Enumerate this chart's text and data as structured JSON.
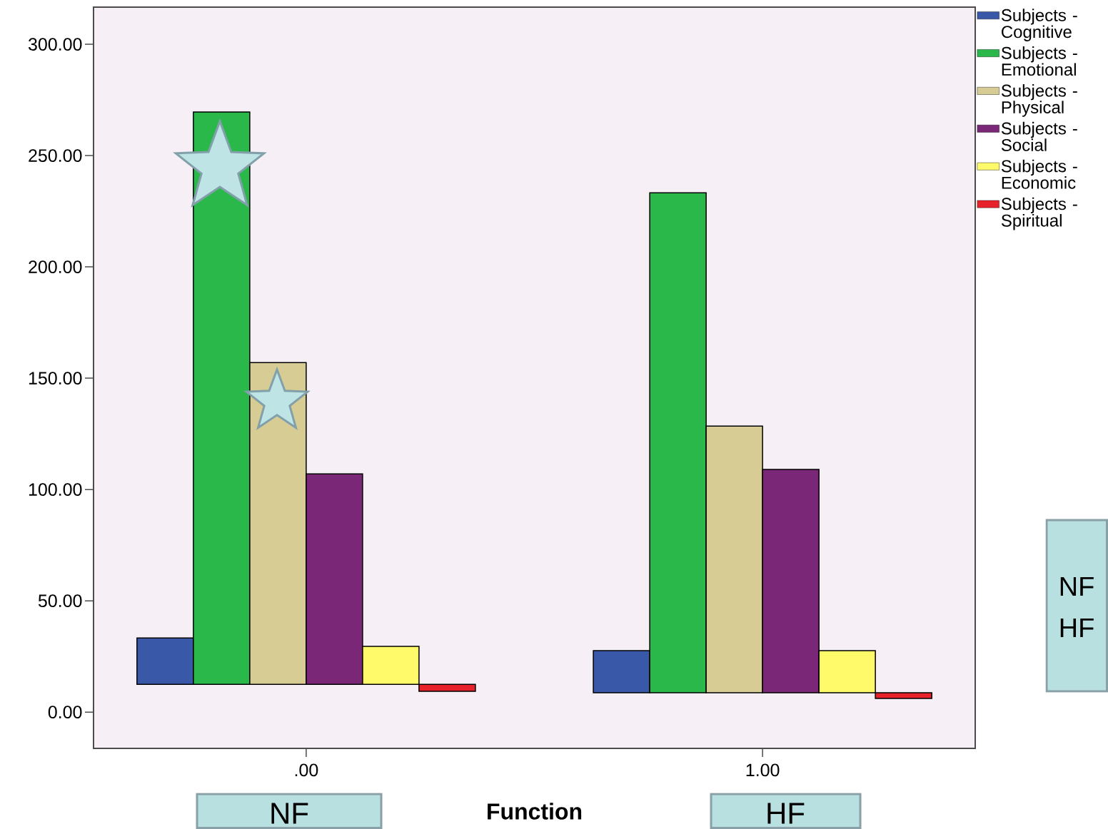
{
  "chart_data": {
    "type": "bar",
    "xlabel": "Function",
    "categories": [
      ".00",
      "1.00"
    ],
    "ylim": [
      -16.3,
      316.7
    ],
    "yticks": [
      {
        "value": 0,
        "label": "0.00"
      },
      {
        "value": 50,
        "label": "50.00"
      },
      {
        "value": 100,
        "label": "100.00"
      },
      {
        "value": 150,
        "label": "150.00"
      },
      {
        "value": 200,
        "label": "200.00"
      },
      {
        "value": 250,
        "label": "250.00"
      },
      {
        "value": 300,
        "label": "300.00"
      }
    ],
    "legend": "top right",
    "series": [
      {
        "name": "Subjects - Cognitive",
        "color": "#3a58a8",
        "values": [
          20.8,
          18.9
        ],
        "base": [
          12.5,
          8.7
        ]
      },
      {
        "name": "Subjects - Emotional",
        "color": "#2bb84a",
        "values": [
          257.1,
          224.6
        ],
        "base": [
          12.5,
          8.7
        ]
      },
      {
        "name": "Subjects - Physical",
        "color": "#d7cc94",
        "values": [
          144.5,
          119.8
        ],
        "base": [
          12.5,
          8.7
        ]
      },
      {
        "name": "Subjects - Social",
        "color": "#7a2777",
        "values": [
          94.5,
          100.3
        ],
        "base": [
          12.5,
          8.7
        ]
      },
      {
        "name": "Subjects - Economic",
        "color": "#fffa6a",
        "values": [
          17,
          18.9
        ],
        "base": [
          12.5,
          8.7
        ]
      },
      {
        "name": "Subjects - Spiritual",
        "color": "#e8222a",
        "values": [
          3.2,
          2.6
        ],
        "base": [
          9.3,
          6.1
        ]
      }
    ],
    "annotations": [
      "NF",
      "HF",
      "NF",
      "HF"
    ]
  }
}
